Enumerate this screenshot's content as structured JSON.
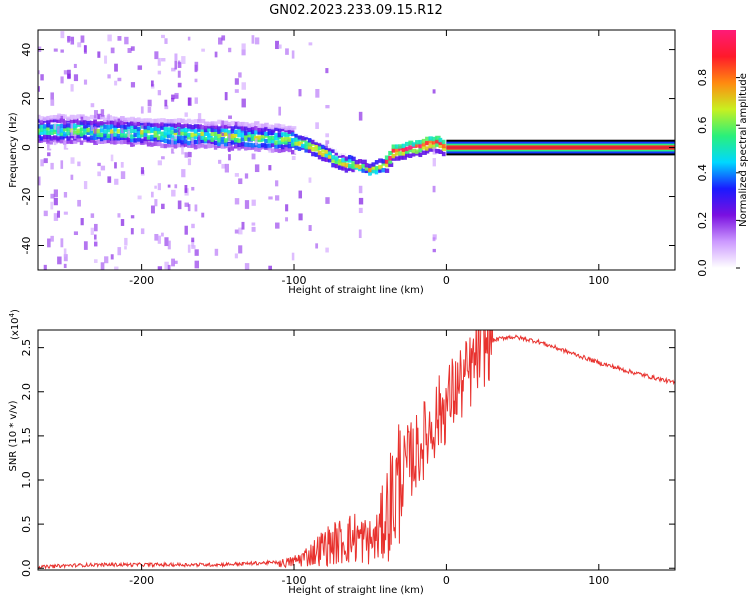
{
  "title": "GN02.2023.233.09.15.R12",
  "colors": {
    "snr_line": "#e8322e",
    "trace_core": "#e0213a",
    "colormap": [
      "#ffffff",
      "#cc99ff",
      "#7a10e0",
      "#1a1aff",
      "#00d8ff",
      "#2af07a",
      "#c8f020",
      "#ff8a10",
      "#ff1a2a",
      "#ff1a77"
    ]
  },
  "chart_data": [
    {
      "type": "heatmap",
      "xlabel": "Height of straight line (km)",
      "ylabel": "Frequency (Hz)",
      "xlim": [
        -268,
        150
      ],
      "ylim": [
        -50,
        48
      ],
      "xticks": [
        -200,
        -100,
        0,
        100
      ],
      "xtick_labels": [
        "-200",
        "-100",
        "0",
        "100"
      ],
      "yticks": [
        -40,
        -20,
        0,
        20,
        40
      ],
      "ytick_labels": [
        "-40",
        "-20",
        "0",
        "20",
        "40"
      ],
      "colorbar": {
        "label": "Normalized spectral amplitude",
        "range": [
          0,
          1
        ],
        "ticks": [
          0.0,
          0.2,
          0.4,
          0.6,
          0.8
        ],
        "tick_labels": [
          "0.0",
          "0.2",
          "0.4",
          "0.6",
          "0.8"
        ]
      },
      "ridge": {
        "x": [
          -268,
          -240,
          -200,
          -160,
          -120,
          -100,
          -90,
          -80,
          -75,
          -70,
          -60,
          -50,
          -45,
          -40,
          -35,
          -30,
          -25,
          -20,
          -15,
          -10,
          -5,
          0,
          150
        ],
        "y": [
          7,
          7,
          6,
          5,
          4,
          3,
          1,
          -2,
          -4,
          -6,
          -7,
          -9,
          -8,
          -7,
          -2,
          -1,
          0,
          0,
          1,
          2,
          2,
          0,
          0
        ]
      }
    },
    {
      "type": "line",
      "xlabel": "Height of straight line (km)",
      "ylabel": "SNR (10 * v/v)",
      "y_scale_label": "(x10",
      "y_scale_exp": "4",
      "y_scale_close": ")",
      "xlim": [
        -268,
        150
      ],
      "ylim": [
        -0.02,
        2.7
      ],
      "xticks": [
        -200,
        -100,
        0,
        100
      ],
      "xtick_labels": [
        "-200",
        "-100",
        "0",
        "100"
      ],
      "yticks": [
        0.0,
        0.5,
        1.0,
        1.5,
        2.0,
        2.5
      ],
      "ytick_labels": [
        "0.0",
        "0.5",
        "1.0",
        "1.5",
        "2.0",
        "2.5"
      ],
      "series": [
        {
          "x": [
            -268,
            -250,
            -230,
            -200,
            -170,
            -150,
            -120,
            -105,
            -100,
            -90,
            -80,
            -70,
            -60,
            -50,
            -45,
            -40,
            -35,
            -30,
            -25,
            -20,
            -15,
            -10,
            -5,
            0,
            5,
            10,
            15,
            20,
            25,
            30,
            40,
            45,
            60,
            80,
            100,
            120,
            150
          ],
          "y": [
            0.0,
            0.02,
            0.03,
            0.03,
            0.03,
            0.03,
            0.05,
            0.06,
            0.08,
            0.15,
            0.25,
            0.3,
            0.35,
            0.3,
            0.35,
            0.6,
            0.8,
            1.0,
            1.2,
            1.3,
            1.45,
            1.6,
            1.75,
            1.85,
            2.0,
            2.1,
            2.2,
            2.4,
            2.5,
            2.58,
            2.62,
            2.62,
            2.57,
            2.45,
            2.33,
            2.23,
            2.1
          ]
        }
      ]
    }
  ]
}
